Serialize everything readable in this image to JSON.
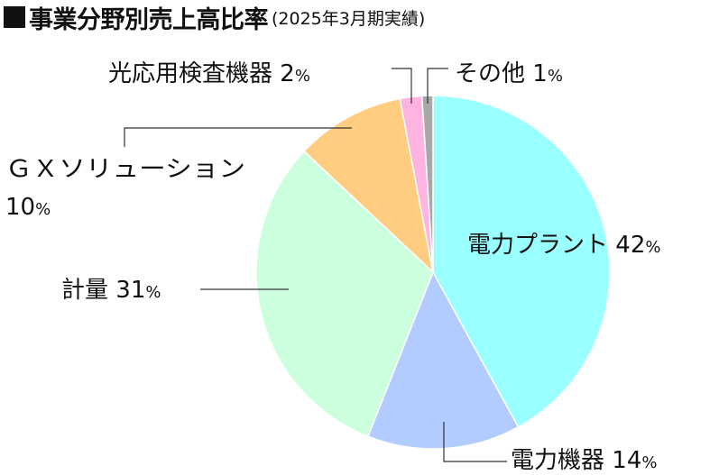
{
  "title": {
    "main": "事業分野別売上高比率",
    "sub": "(2025年3月期実績)"
  },
  "chart_data": {
    "type": "pie",
    "title": "事業分野別売上高比率",
    "subtitle": "(2025年3月期実績)",
    "unit": "%",
    "slices": [
      {
        "name": "電力プラント",
        "value": 42,
        "color": "#99FFFF"
      },
      {
        "name": "電力機器",
        "value": 14,
        "color": "#B3CCFF"
      },
      {
        "name": "計量",
        "value": 31,
        "color": "#CCFFDD"
      },
      {
        "name": "ＧＸソリューション",
        "value": 10,
        "color": "#FFCC80"
      },
      {
        "name": "光応用検査機器",
        "value": 2,
        "color": "#FFB3E0"
      },
      {
        "name": "その他",
        "value": 1,
        "color": "#A8A8A8"
      }
    ]
  }
}
